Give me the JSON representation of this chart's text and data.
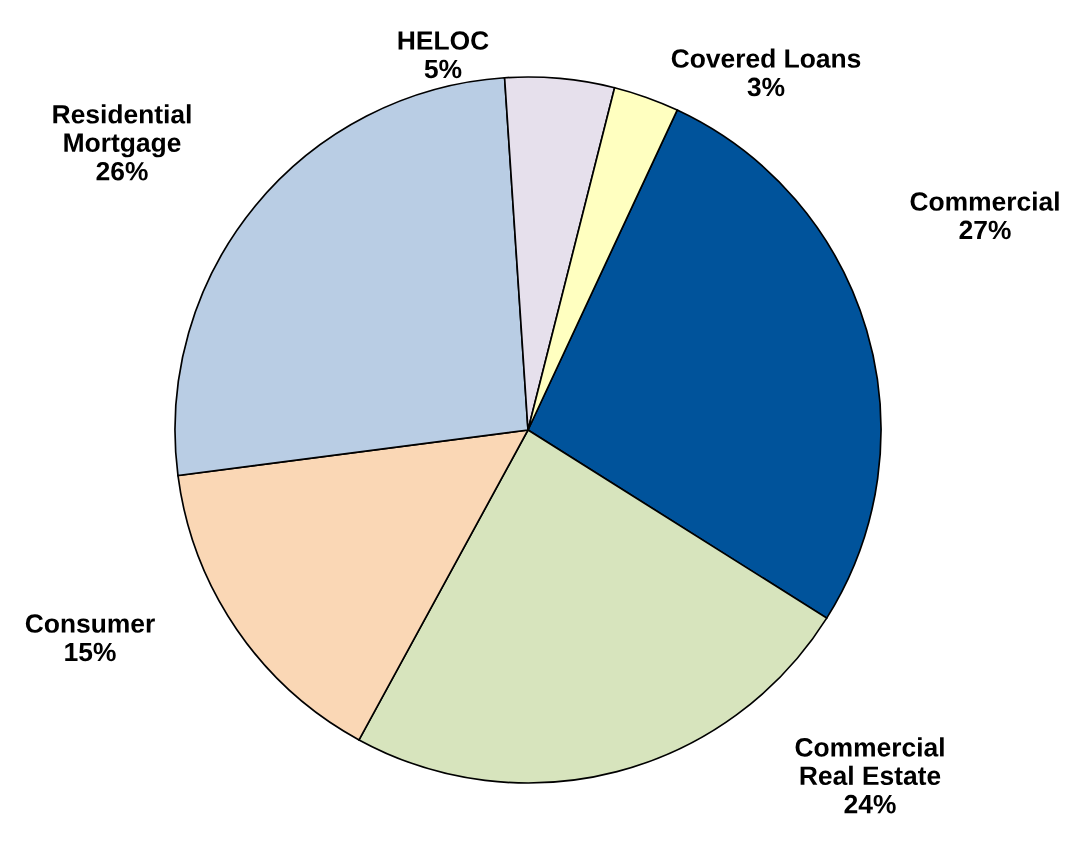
{
  "chart_data": {
    "type": "pie",
    "categories": [
      "Commercial",
      "Commercial\nReal Estate",
      "Consumer",
      "Residential\nMortgage",
      "HELOC",
      "Covered Loans"
    ],
    "values": [
      27,
      24,
      15,
      26,
      5,
      3
    ],
    "value_labels": [
      "27%",
      "24%",
      "15%",
      "26%",
      "5%",
      "3%"
    ],
    "colors": [
      "#00539b",
      "#d7e4bd",
      "#fad7b5",
      "#b9cde4",
      "#e6e0ec",
      "#ffffc0"
    ],
    "legend": false
  }
}
